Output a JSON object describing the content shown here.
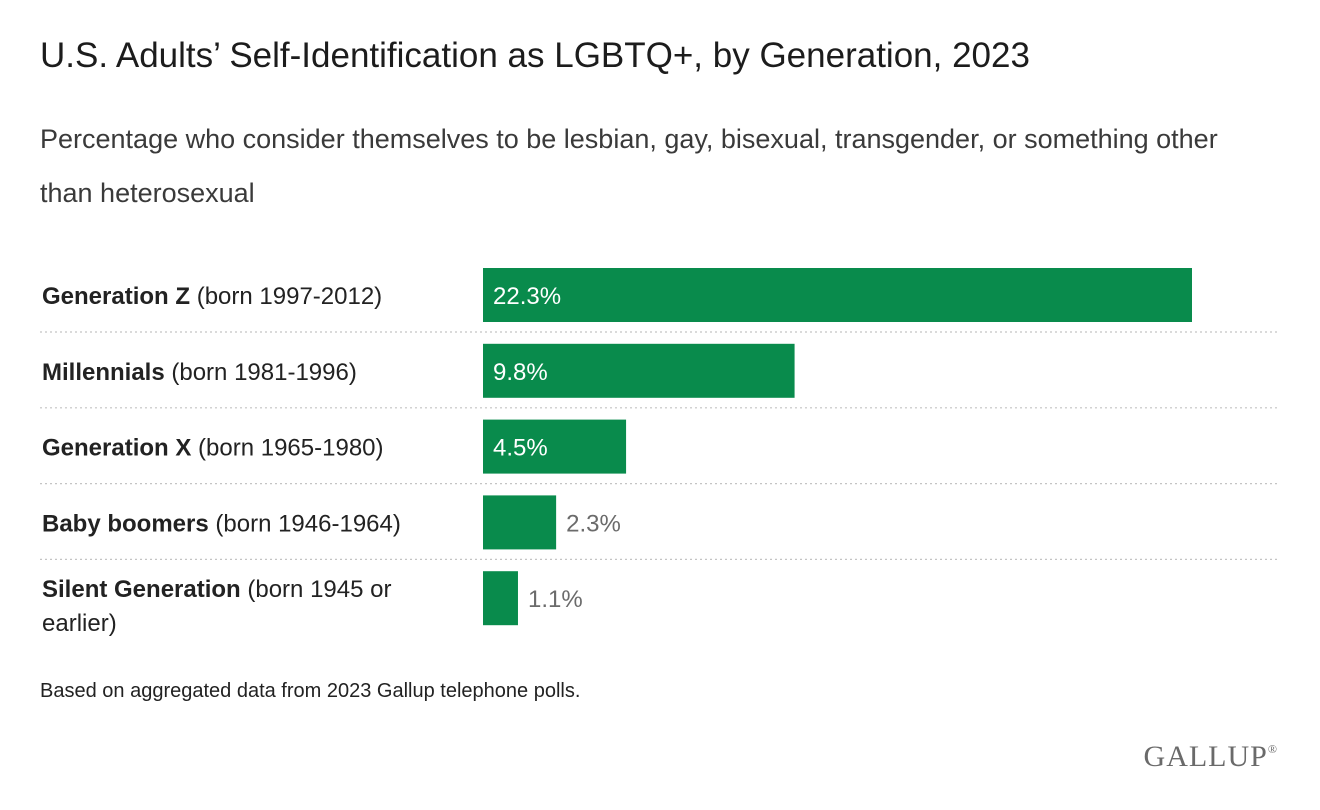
{
  "header": {
    "title": "U.S. Adults’ Self-Identification as LGBTQ+, by Generation, 2023",
    "subtitle": "Percentage who consider themselves to be lesbian, gay, bisexual, transgender, or something other than heterosexual"
  },
  "chart_data": {
    "type": "bar",
    "orientation": "horizontal",
    "title": "U.S. Adults’ Self-Identification as LGBTQ+, by Generation, 2023",
    "subtitle": "Percentage who consider themselves to be lesbian, gay, bisexual, transgender, or something other than heterosexual",
    "xlabel": "",
    "ylabel": "",
    "unit": "%",
    "bar_color": "#098B4C",
    "grid": false,
    "rows": [
      {
        "name": "Generation Z",
        "detail": "(born 1997-2012)",
        "detail_cont": "",
        "value": 22.3,
        "label": "22.3%"
      },
      {
        "name": "Millennials",
        "detail": "(born 1981-1996)",
        "detail_cont": "",
        "value": 9.8,
        "label": "9.8%"
      },
      {
        "name": "Generation X",
        "detail": "(born 1965-1980)",
        "detail_cont": "",
        "value": 4.5,
        "label": "4.5%"
      },
      {
        "name": "Baby boomers",
        "detail": "(born 1946-1964)",
        "detail_cont": "",
        "value": 2.3,
        "label": "2.3%"
      },
      {
        "name": "Silent Generation",
        "detail": "(born 1945 or",
        "detail_cont": "earlier)",
        "value": 1.1,
        "label": "1.1%"
      }
    ]
  },
  "footnote": "Based on aggregated data from 2023 Gallup telephone polls.",
  "brand": {
    "logo_text": "GALLUP",
    "logo_mark": "®"
  }
}
